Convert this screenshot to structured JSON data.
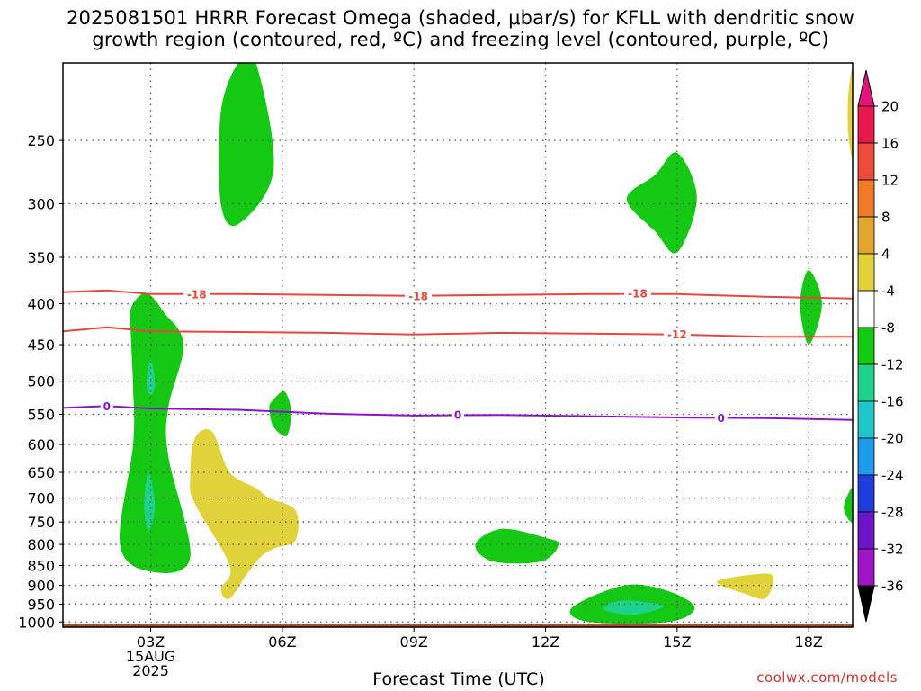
{
  "chart_data": {
    "type": "heatmap",
    "title": "2025081501 HRRR Forecast Omega (shaded, μbar/s) for KFLL with dendritic snow growth region (contoured, red, ºC) and freezing level (contoured, purple, ºC)",
    "title_line1": "2025081501 HRRR Forecast Omega (shaded, μbar/s) for KFLL with dendritic snow",
    "title_line2": "growth region (contoured, red, ºC) and freezing level (contoured, purple, ºC)",
    "xlabel": "Forecast Time (UTC)",
    "ylabel": "",
    "x_ticks": [
      {
        "hour": 3,
        "label": "03Z",
        "sub1": "15AUG",
        "sub2": "2025"
      },
      {
        "hour": 6,
        "label": "06Z"
      },
      {
        "hour": 9,
        "label": "09Z"
      },
      {
        "hour": 12,
        "label": "12Z"
      },
      {
        "hour": 15,
        "label": "15Z"
      },
      {
        "hour": 18,
        "label": "18Z"
      }
    ],
    "xlim": [
      1,
      19
    ],
    "y_ticks": [
      250,
      300,
      350,
      400,
      450,
      500,
      550,
      600,
      650,
      700,
      750,
      800,
      850,
      900,
      950,
      1000
    ],
    "ylim": [
      1015,
      200
    ],
    "y_scale": "log",
    "grid": true,
    "colorbar": {
      "levels": [
        20,
        16,
        12,
        8,
        4,
        -4,
        -8,
        -12,
        -16,
        -20,
        -24,
        -28,
        -32,
        -36
      ],
      "colors": [
        "#e8174f",
        "#ef4a3a",
        "#ee7a28",
        "#e2a52f",
        "#e0d23a",
        "#ffffff",
        "#14c814",
        "#1ed28c",
        "#1ec8c8",
        "#1e9bec",
        "#1e3cdc",
        "#6e14c8",
        "#a014c8",
        "#a0a0a0"
      ],
      "top_color": "#e0147a",
      "bottom_color": "#000000"
    },
    "shaded_regions": [
      {
        "class": "-4 to -8",
        "color": "#14c814",
        "points": [
          [
            5.0,
            200
          ],
          [
            5.4,
            200
          ],
          [
            5.8,
            272
          ],
          [
            5.0,
            318
          ],
          [
            4.6,
            300
          ],
          [
            4.6,
            230
          ]
        ]
      },
      {
        "class": "-4 to -8",
        "color": "#14c814",
        "points": [
          [
            14.5,
            276
          ],
          [
            15.0,
            259
          ],
          [
            15.45,
            295
          ],
          [
            15.0,
            345
          ],
          [
            14.5,
            325
          ],
          [
            13.85,
            296
          ]
        ]
      },
      {
        "class": "-4 to -8",
        "color": "#14c814",
        "points": [
          [
            2.55,
            405
          ],
          [
            2.9,
            388
          ],
          [
            3.3,
            410
          ],
          [
            3.75,
            450
          ],
          [
            3.4,
            540
          ],
          [
            3.4,
            620
          ],
          [
            3.9,
            830
          ],
          [
            3.0,
            865
          ],
          [
            2.3,
            800
          ],
          [
            2.6,
            600
          ],
          [
            2.6,
            510
          ],
          [
            2.55,
            440
          ]
        ]
      },
      {
        "class": "-8 to -12",
        "color": "#1ed28c",
        "points": [
          [
            3.0,
            470
          ],
          [
            3.1,
            505
          ],
          [
            3.0,
            520
          ],
          [
            2.9,
            505
          ]
        ]
      },
      {
        "class": "-8 to -12",
        "color": "#1ed28c",
        "points": [
          [
            2.95,
            650
          ],
          [
            3.1,
            715
          ],
          [
            2.95,
            770
          ],
          [
            2.85,
            715
          ]
        ]
      },
      {
        "class": "-4 to -8",
        "color": "#14c814",
        "points": [
          [
            5.8,
            527
          ],
          [
            6.05,
            515
          ],
          [
            6.2,
            545
          ],
          [
            6.1,
            585
          ],
          [
            5.8,
            570
          ],
          [
            5.7,
            540
          ]
        ]
      },
      {
        "class": "-4 to -8",
        "color": "#14c814",
        "points": [
          [
            18.0,
            363
          ],
          [
            18.3,
            400
          ],
          [
            18.0,
            450
          ],
          [
            17.8,
            400
          ]
        ]
      },
      {
        "class": "-4 to -8",
        "color": "#14c814",
        "points": [
          [
            19.0,
            680
          ],
          [
            19.0,
            750
          ],
          [
            18.8,
            720
          ]
        ]
      },
      {
        "class": "-4 to -8",
        "color": "#14c814",
        "points": [
          [
            10.4,
            800
          ],
          [
            11.0,
            765
          ],
          [
            12.0,
            785
          ],
          [
            12.3,
            800
          ],
          [
            11.9,
            840
          ],
          [
            10.8,
            840
          ]
        ]
      },
      {
        "class": "-4 to -8",
        "color": "#14c814",
        "points": [
          [
            12.6,
            960
          ],
          [
            13.8,
            900
          ],
          [
            14.8,
            915
          ],
          [
            15.4,
            960
          ],
          [
            14.8,
            1000
          ],
          [
            13.0,
            1000
          ]
        ]
      },
      {
        "class": "-8 to -12",
        "color": "#1ed28c",
        "points": [
          [
            13.3,
            960
          ],
          [
            13.8,
            940
          ],
          [
            14.7,
            955
          ],
          [
            14.1,
            978
          ],
          [
            13.6,
            975
          ]
        ]
      },
      {
        "class": "4 to 8",
        "color": "#e0d23a",
        "points": [
          [
            4.0,
            590
          ],
          [
            4.4,
            578
          ],
          [
            4.8,
            650
          ],
          [
            5.4,
            680
          ],
          [
            5.7,
            700
          ],
          [
            6.3,
            725
          ],
          [
            6.3,
            790
          ],
          [
            5.8,
            810
          ],
          [
            5.5,
            830
          ],
          [
            5.2,
            870
          ],
          [
            4.8,
            935
          ],
          [
            4.6,
            910
          ],
          [
            4.8,
            850
          ],
          [
            4.0,
            710
          ],
          [
            3.9,
            660
          ]
        ]
      },
      {
        "class": "4 to 8",
        "color": "#e0d23a",
        "points": [
          [
            18.9,
            220
          ],
          [
            19.0,
            205
          ],
          [
            19.0,
            260
          ],
          [
            18.9,
            245
          ]
        ]
      },
      {
        "class": "4 to 8",
        "color": "#e0d23a",
        "points": [
          [
            16.0,
            885
          ],
          [
            17.0,
            870
          ],
          [
            17.2,
            885
          ],
          [
            17.0,
            935
          ],
          [
            16.5,
            920
          ],
          [
            16.0,
            900
          ]
        ]
      }
    ],
    "contours": [
      {
        "name": "-18",
        "color": "#e8463c",
        "line_points": [
          [
            1,
            387
          ],
          [
            2,
            385
          ],
          [
            3,
            389
          ],
          [
            5,
            389
          ],
          [
            7,
            390
          ],
          [
            9,
            391
          ],
          [
            11,
            390
          ],
          [
            13,
            389
          ],
          [
            15,
            389
          ],
          [
            17,
            392
          ],
          [
            19,
            394
          ]
        ],
        "labels": [
          [
            4.05,
            389
          ],
          [
            9.1,
            391
          ],
          [
            14.1,
            388
          ]
        ]
      },
      {
        "name": "-12",
        "color": "#e8463c",
        "line_points": [
          [
            1,
            433
          ],
          [
            2,
            428
          ],
          [
            3,
            433
          ],
          [
            5,
            434
          ],
          [
            7,
            435
          ],
          [
            9,
            437
          ],
          [
            11,
            435
          ],
          [
            13,
            436
          ],
          [
            15,
            437
          ],
          [
            17,
            440
          ],
          [
            19,
            440
          ]
        ],
        "labels": [
          [
            15.0,
            437
          ]
        ]
      },
      {
        "name": "0",
        "color": "#8c14c8",
        "line_points": [
          [
            1,
            540
          ],
          [
            2,
            537
          ],
          [
            3,
            541
          ],
          [
            5,
            543
          ],
          [
            7,
            549
          ],
          [
            9,
            552
          ],
          [
            11,
            551
          ],
          [
            13,
            553
          ],
          [
            15,
            555
          ],
          [
            17,
            556
          ],
          [
            19,
            559
          ]
        ],
        "labels": [
          [
            2.0,
            537
          ],
          [
            10.0,
            551
          ],
          [
            16.0,
            556
          ]
        ]
      }
    ],
    "surface": {
      "color": "#a0522d",
      "top_pressure": 1005
    }
  },
  "credit": "coolwx.com/models"
}
